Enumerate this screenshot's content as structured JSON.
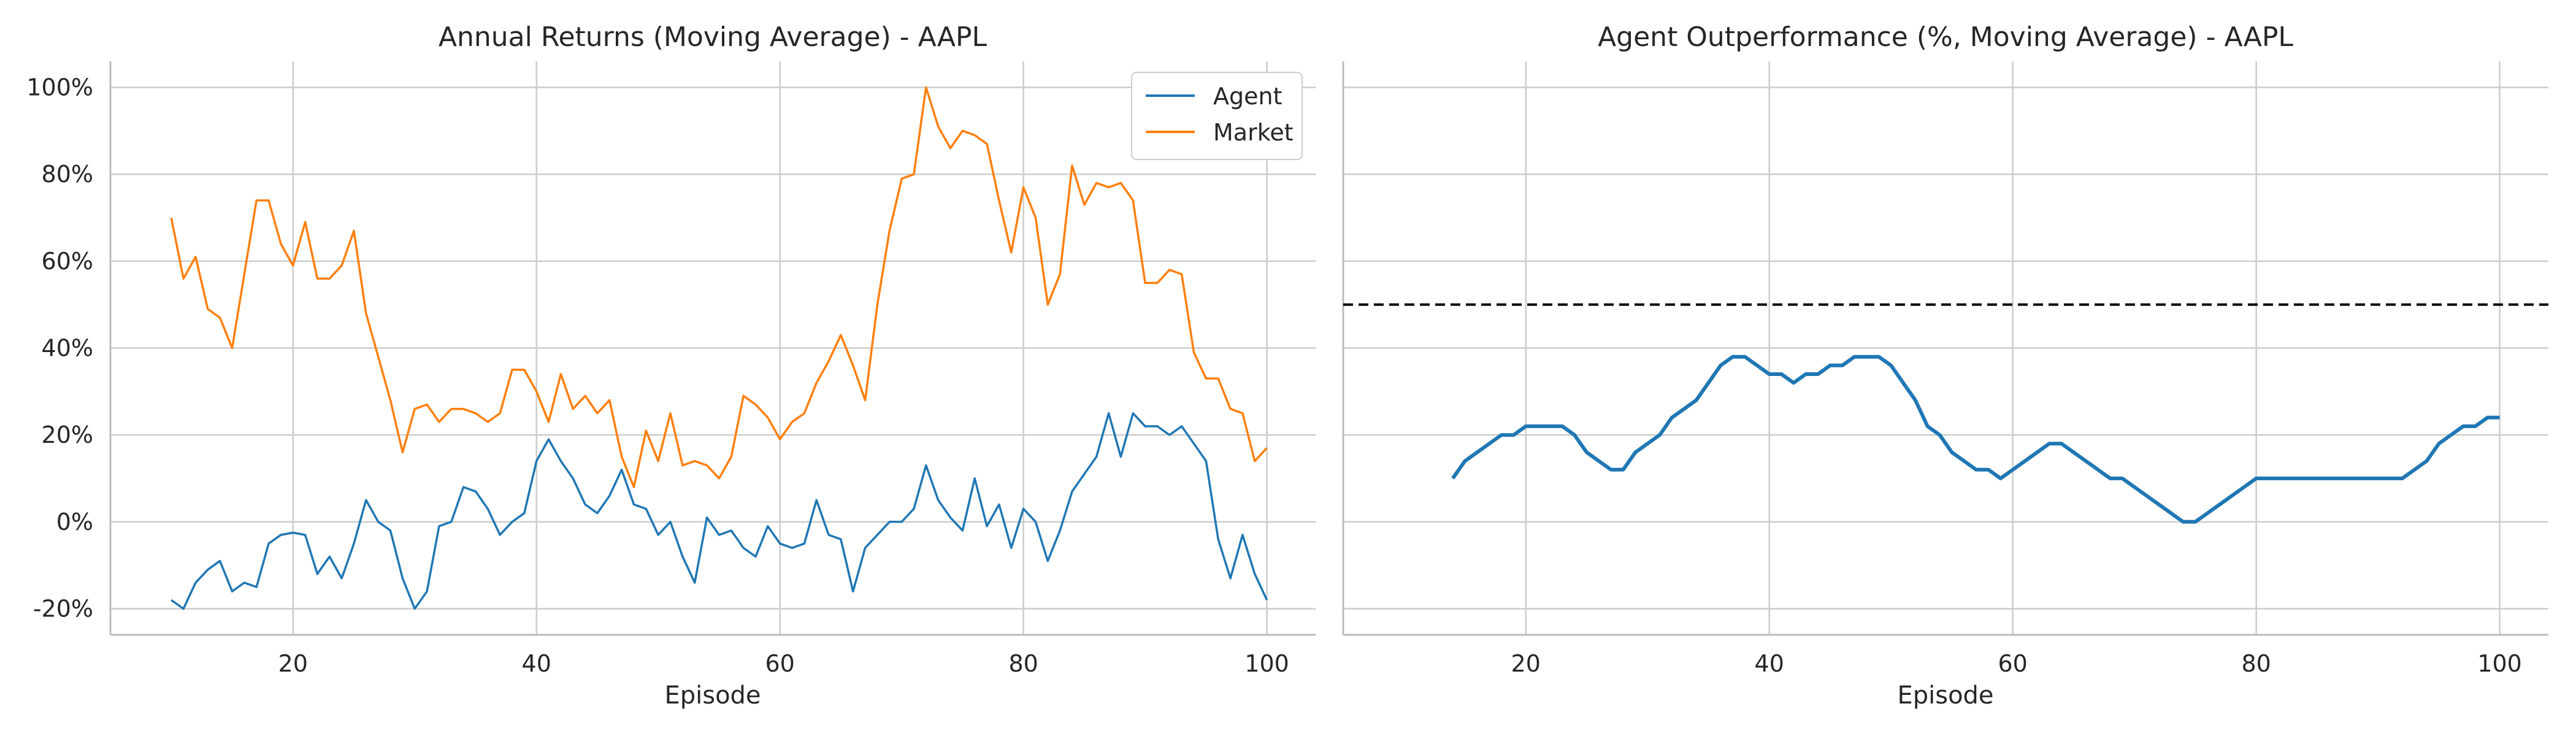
{
  "chart_data": [
    {
      "type": "line",
      "title": "Annual Returns (Moving Average) - AAPL",
      "xlabel": "Episode",
      "ylabel": "",
      "xlim": [
        5,
        104
      ],
      "ylim": [
        -26,
        106
      ],
      "xticks": [
        20,
        40,
        60,
        80,
        100
      ],
      "xtick_labels": [
        "20",
        "40",
        "60",
        "80",
        "100"
      ],
      "yticks": [
        -20,
        0,
        20,
        40,
        60,
        80,
        100
      ],
      "ytick_labels": [
        "-20%",
        "0%",
        "20%",
        "40%",
        "60%",
        "80%",
        "100%"
      ],
      "grid": true,
      "legend": "top-right",
      "x_start": 10,
      "series": [
        {
          "name": "Agent",
          "color": "#1f77b4",
          "values": [
            -18,
            -20,
            -14,
            -11,
            -9,
            -16,
            -14,
            -15,
            -5,
            -3,
            -2.5,
            -3,
            -12,
            -8,
            -13,
            -5,
            5,
            0,
            -2,
            -13,
            -20,
            -16,
            -1,
            0,
            8,
            7,
            3,
            -3,
            0,
            2,
            14,
            19,
            14,
            10,
            4,
            2,
            6,
            12,
            4,
            3,
            -3,
            0,
            -8,
            -14,
            1,
            -3,
            -2,
            -6,
            -8,
            -1,
            -5,
            -6,
            -5,
            5,
            -3,
            -4,
            -16,
            -6,
            -3,
            0,
            0,
            3,
            13,
            5,
            1,
            -2,
            10,
            -1,
            4,
            -6,
            3,
            0,
            -9,
            -2,
            7,
            11,
            15,
            25,
            15,
            25,
            22,
            22,
            20,
            22,
            18,
            14,
            -4,
            -13,
            -3,
            -12,
            -18
          ]
        },
        {
          "name": "Market",
          "color": "#ff7f0e",
          "values": [
            70,
            56,
            61,
            49,
            47,
            40,
            57,
            74,
            74,
            64,
            59,
            69,
            56,
            56,
            59,
            67,
            48,
            38,
            28,
            16,
            26,
            27,
            23,
            26,
            26,
            25,
            23,
            25,
            35,
            35,
            30,
            23,
            34,
            26,
            29,
            25,
            28,
            15,
            8,
            21,
            14,
            25,
            13,
            14,
            13,
            10,
            15,
            29,
            27,
            24,
            19,
            23,
            25,
            32,
            37,
            43,
            36,
            28,
            50,
            67,
            79,
            80,
            100,
            91,
            86,
            90,
            89,
            87,
            74,
            62,
            77,
            70,
            50,
            57,
            82,
            73,
            78,
            77,
            78,
            74,
            55,
            55,
            58,
            57,
            39,
            33,
            33,
            26,
            25,
            14,
            17
          ]
        }
      ]
    },
    {
      "type": "line",
      "title": "Agent Outperformance (%, Moving Average) - AAPL",
      "xlabel": "Episode",
      "ylabel": "",
      "xlim": [
        5,
        104
      ],
      "ylim": [
        -26,
        106
      ],
      "xticks": [
        20,
        40,
        60,
        80,
        100
      ],
      "xtick_labels": [
        "20",
        "40",
        "60",
        "80",
        "100"
      ],
      "grid": true,
      "reference_line": {
        "y": 50,
        "style": "dashed",
        "color": "#000000"
      },
      "x_start": 14,
      "series": [
        {
          "color": "#1f77b4",
          "values": [
            10,
            14,
            16,
            18,
            20,
            20,
            22,
            22,
            22,
            22,
            20,
            16,
            14,
            12,
            12,
            16,
            18,
            20,
            24,
            26,
            28,
            32,
            36,
            38,
            38,
            36,
            34,
            34,
            32,
            34,
            34,
            36,
            36,
            38,
            38,
            38,
            36,
            32,
            28,
            22,
            20,
            16,
            14,
            12,
            12,
            10,
            12,
            14,
            16,
            18,
            18,
            16,
            14,
            12,
            10,
            10,
            8,
            6,
            4,
            2,
            0,
            0,
            2,
            4,
            6,
            8,
            10,
            10,
            10,
            10,
            10,
            10,
            10,
            10,
            10,
            10,
            10,
            10,
            10,
            12,
            14,
            18,
            20,
            22,
            22,
            24,
            24
          ]
        }
      ]
    }
  ]
}
